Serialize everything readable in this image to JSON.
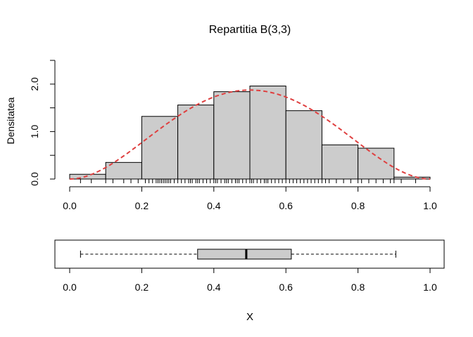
{
  "chart_data": [
    {
      "type": "bar",
      "title": "Repartitia B(3,3)",
      "ylabel": "Densitatea",
      "xlim": [
        0,
        1
      ],
      "ylim": [
        0,
        2.5
      ],
      "x_ticks": [
        0.0,
        0.2,
        0.4,
        0.6,
        0.8,
        1.0
      ],
      "x_tick_labels": [
        "0.0",
        "0.2",
        "0.4",
        "0.6",
        "0.8",
        "1.0"
      ],
      "y_ticks": [
        0.0,
        0.5,
        1.0,
        1.5,
        2.0,
        2.5
      ],
      "y_tick_labels": [
        "0.0",
        "",
        "1.0",
        "",
        "2.0",
        ""
      ],
      "histogram": {
        "breaks": [
          0.0,
          0.1,
          0.2,
          0.3,
          0.4,
          0.5,
          0.6,
          0.7,
          0.8,
          0.9,
          1.0
        ],
        "densities": [
          0.1,
          0.35,
          1.32,
          1.56,
          1.84,
          1.96,
          1.44,
          0.72,
          0.65,
          0.04
        ],
        "fill": "#cccccc",
        "border": "#000000"
      },
      "density_curve": {
        "type": "line",
        "description_formula": "Beta(3,3)",
        "style": "dashed",
        "color": "#df3f3f"
      },
      "rug": [
        0.03,
        0.06,
        0.1,
        0.12,
        0.15,
        0.17,
        0.19,
        0.21,
        0.22,
        0.23,
        0.24,
        0.245,
        0.25,
        0.255,
        0.26,
        0.265,
        0.27,
        0.275,
        0.28,
        0.29,
        0.3,
        0.31,
        0.32,
        0.33,
        0.335,
        0.34,
        0.35,
        0.355,
        0.36,
        0.37,
        0.38,
        0.39,
        0.4,
        0.405,
        0.41,
        0.42,
        0.43,
        0.435,
        0.44,
        0.45,
        0.46,
        0.465,
        0.47,
        0.48,
        0.49,
        0.5,
        0.505,
        0.51,
        0.52,
        0.53,
        0.54,
        0.545,
        0.55,
        0.56,
        0.57,
        0.58,
        0.59,
        0.6,
        0.61,
        0.62,
        0.63,
        0.64,
        0.65,
        0.66,
        0.67,
        0.68,
        0.69,
        0.7,
        0.71,
        0.72,
        0.74,
        0.76,
        0.78,
        0.8,
        0.81,
        0.83,
        0.85,
        0.87,
        0.89,
        0.9,
        0.92,
        0.96
      ]
    },
    {
      "type": "boxplot",
      "xlabel": "X",
      "xlim": [
        0,
        1
      ],
      "x_ticks": [
        0.0,
        0.2,
        0.4,
        0.6,
        0.8,
        1.0
      ],
      "x_tick_labels": [
        "0.0",
        "0.2",
        "0.4",
        "0.6",
        "0.8",
        "1.0"
      ],
      "whisker_low": 0.03,
      "q1": 0.355,
      "median": 0.49,
      "q3": 0.615,
      "whisker_high": 0.905,
      "fill": "#cccccc"
    }
  ]
}
